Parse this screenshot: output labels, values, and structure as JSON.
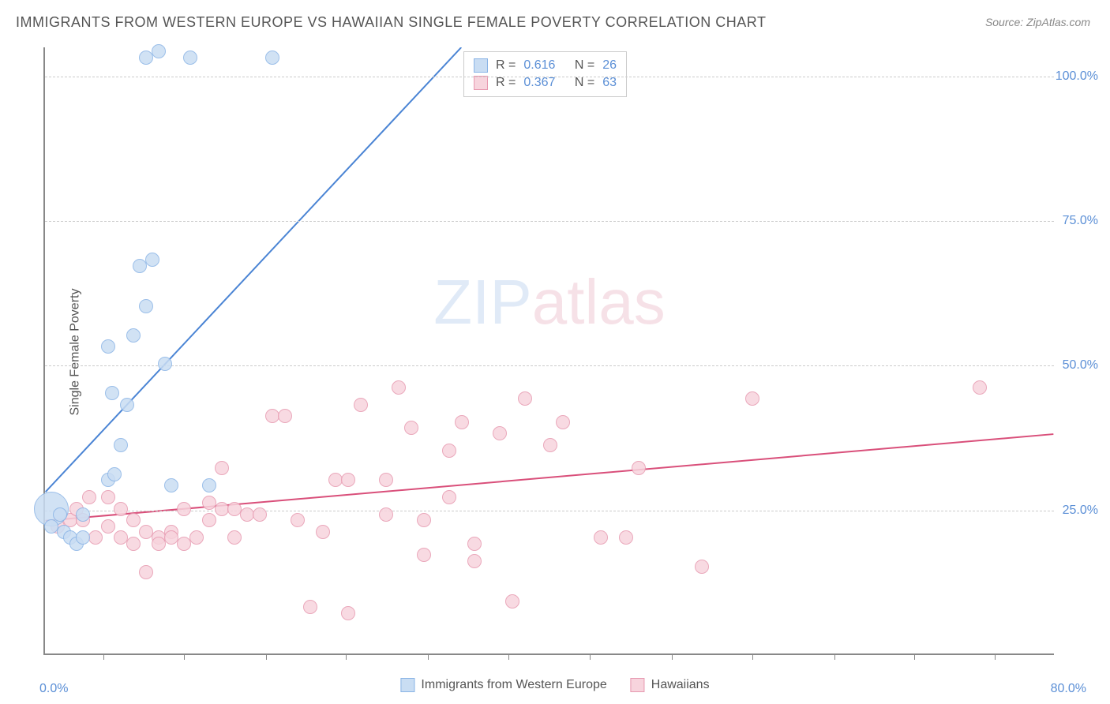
{
  "title": "IMMIGRANTS FROM WESTERN EUROPE VS HAWAIIAN SINGLE FEMALE POVERTY CORRELATION CHART",
  "source": "Source: ZipAtlas.com",
  "watermark": {
    "zip": "ZIP",
    "atlas": "atlas"
  },
  "ylabel": "Single Female Poverty",
  "chart": {
    "type": "scatter",
    "xlim": [
      0,
      80
    ],
    "ylim": [
      0,
      105
    ],
    "x_ticks": [
      0,
      80
    ],
    "x_tick_labels": [
      "0.0%",
      "80.0%"
    ],
    "y_ticks": [
      25,
      50,
      75,
      100
    ],
    "y_tick_labels": [
      "25.0%",
      "50.0%",
      "75.0%",
      "100.0%"
    ],
    "v_tick_marks": [
      4.6,
      11,
      17.5,
      23.8,
      30.3,
      36.7,
      43.1,
      49.6,
      56,
      62.5,
      68.8,
      75.2
    ],
    "background_color": "#ffffff",
    "grid_color": "#cccccc",
    "axis_color": "#888888"
  },
  "series": [
    {
      "name": "Immigrants from Western Europe",
      "color_fill": "#c9ddf3",
      "color_stroke": "#8ab4e6",
      "marker_radius": 9,
      "corr_R": "0.616",
      "corr_N": "26",
      "trend": {
        "x1": 0,
        "y1": 28,
        "x2": 33,
        "y2": 105,
        "color": "#4a84d4",
        "width": 2
      },
      "points": [
        {
          "x": 0.5,
          "y": 25,
          "r": 22
        },
        {
          "x": 0.5,
          "y": 22,
          "r": 9
        },
        {
          "x": 1.2,
          "y": 24,
          "r": 9
        },
        {
          "x": 1.5,
          "y": 21,
          "r": 9
        },
        {
          "x": 2.0,
          "y": 20,
          "r": 9
        },
        {
          "x": 2.5,
          "y": 19,
          "r": 9
        },
        {
          "x": 3.0,
          "y": 20,
          "r": 9
        },
        {
          "x": 3.0,
          "y": 24,
          "r": 9
        },
        {
          "x": 5.0,
          "y": 30,
          "r": 9
        },
        {
          "x": 5.5,
          "y": 31,
          "r": 9
        },
        {
          "x": 5.3,
          "y": 45,
          "r": 9
        },
        {
          "x": 5.0,
          "y": 53,
          "r": 9
        },
        {
          "x": 6.0,
          "y": 36,
          "r": 9
        },
        {
          "x": 6.5,
          "y": 43,
          "r": 9
        },
        {
          "x": 7.0,
          "y": 55,
          "r": 9
        },
        {
          "x": 8.0,
          "y": 60,
          "r": 9
        },
        {
          "x": 7.5,
          "y": 67,
          "r": 9
        },
        {
          "x": 8.5,
          "y": 68,
          "r": 9
        },
        {
          "x": 9.5,
          "y": 50,
          "r": 9
        },
        {
          "x": 10.0,
          "y": 29,
          "r": 9
        },
        {
          "x": 13.0,
          "y": 29,
          "r": 9
        },
        {
          "x": 8.0,
          "y": 103,
          "r": 9
        },
        {
          "x": 9.0,
          "y": 104,
          "r": 9
        },
        {
          "x": 11.5,
          "y": 103,
          "r": 9
        },
        {
          "x": 18.0,
          "y": 103,
          "r": 9
        }
      ]
    },
    {
      "name": "Hawaiians",
      "color_fill": "#f7d4dd",
      "color_stroke": "#e799b0",
      "marker_radius": 9,
      "corr_R": "0.367",
      "corr_N": "63",
      "trend": {
        "x1": 0,
        "y1": 23,
        "x2": 80,
        "y2": 38,
        "color": "#d94f7a",
        "width": 2
      },
      "points": [
        {
          "x": 1.0,
          "y": 22,
          "r": 9
        },
        {
          "x": 2.0,
          "y": 23,
          "r": 9
        },
        {
          "x": 2.5,
          "y": 25,
          "r": 9
        },
        {
          "x": 3.0,
          "y": 23,
          "r": 9
        },
        {
          "x": 3.5,
          "y": 27,
          "r": 9
        },
        {
          "x": 4.0,
          "y": 20,
          "r": 9
        },
        {
          "x": 5.0,
          "y": 22,
          "r": 9
        },
        {
          "x": 5.0,
          "y": 27,
          "r": 9
        },
        {
          "x": 6.0,
          "y": 20,
          "r": 9
        },
        {
          "x": 6.0,
          "y": 25,
          "r": 9
        },
        {
          "x": 7.0,
          "y": 19,
          "r": 9
        },
        {
          "x": 7.0,
          "y": 23,
          "r": 9
        },
        {
          "x": 8.0,
          "y": 14,
          "r": 9
        },
        {
          "x": 8.0,
          "y": 21,
          "r": 9
        },
        {
          "x": 9.0,
          "y": 20,
          "r": 9
        },
        {
          "x": 9.0,
          "y": 19,
          "r": 9
        },
        {
          "x": 10.0,
          "y": 21,
          "r": 9
        },
        {
          "x": 10.0,
          "y": 20,
          "r": 9
        },
        {
          "x": 11.0,
          "y": 19,
          "r": 9
        },
        {
          "x": 11.0,
          "y": 25,
          "r": 9
        },
        {
          "x": 12.0,
          "y": 20,
          "r": 9
        },
        {
          "x": 13.0,
          "y": 26,
          "r": 9
        },
        {
          "x": 13.0,
          "y": 23,
          "r": 9
        },
        {
          "x": 14.0,
          "y": 25,
          "r": 9
        },
        {
          "x": 14.0,
          "y": 32,
          "r": 9
        },
        {
          "x": 15.0,
          "y": 25,
          "r": 9
        },
        {
          "x": 15.0,
          "y": 20,
          "r": 9
        },
        {
          "x": 16.0,
          "y": 24,
          "r": 9
        },
        {
          "x": 17.0,
          "y": 24,
          "r": 9
        },
        {
          "x": 18.0,
          "y": 41,
          "r": 9
        },
        {
          "x": 19.0,
          "y": 41,
          "r": 9
        },
        {
          "x": 20.0,
          "y": 23,
          "r": 9
        },
        {
          "x": 21.0,
          "y": 8,
          "r": 9
        },
        {
          "x": 22.0,
          "y": 21,
          "r": 9
        },
        {
          "x": 23.0,
          "y": 30,
          "r": 9
        },
        {
          "x": 24.0,
          "y": 30,
          "r": 9
        },
        {
          "x": 24.0,
          "y": 7,
          "r": 9
        },
        {
          "x": 25.0,
          "y": 43,
          "r": 9
        },
        {
          "x": 27.0,
          "y": 30,
          "r": 9
        },
        {
          "x": 27.0,
          "y": 24,
          "r": 9
        },
        {
          "x": 28.0,
          "y": 46,
          "r": 9
        },
        {
          "x": 29.0,
          "y": 39,
          "r": 9
        },
        {
          "x": 30.0,
          "y": 17,
          "r": 9
        },
        {
          "x": 30.0,
          "y": 23,
          "r": 9
        },
        {
          "x": 32.0,
          "y": 27,
          "r": 9
        },
        {
          "x": 32.0,
          "y": 35,
          "r": 9
        },
        {
          "x": 33.0,
          "y": 40,
          "r": 9
        },
        {
          "x": 34.0,
          "y": 19,
          "r": 9
        },
        {
          "x": 34.0,
          "y": 16,
          "r": 9
        },
        {
          "x": 36.0,
          "y": 38,
          "r": 9
        },
        {
          "x": 37.0,
          "y": 9,
          "r": 9
        },
        {
          "x": 38.0,
          "y": 44,
          "r": 9
        },
        {
          "x": 40.0,
          "y": 36,
          "r": 9
        },
        {
          "x": 41.0,
          "y": 40,
          "r": 9
        },
        {
          "x": 44.0,
          "y": 20,
          "r": 9
        },
        {
          "x": 46.0,
          "y": 20,
          "r": 9
        },
        {
          "x": 47.0,
          "y": 32,
          "r": 9
        },
        {
          "x": 52.0,
          "y": 15,
          "r": 9
        },
        {
          "x": 56.0,
          "y": 44,
          "r": 9
        },
        {
          "x": 74.0,
          "y": 46,
          "r": 9
        }
      ]
    }
  ],
  "bottom_legend": [
    {
      "label": "Immigrants from Western Europe",
      "fill": "#c9ddf3",
      "stroke": "#8ab4e6"
    },
    {
      "label": "Hawaiians",
      "fill": "#f7d4dd",
      "stroke": "#e799b0"
    }
  ],
  "corr_legend_label_R": "R =",
  "corr_legend_label_N": "N ="
}
